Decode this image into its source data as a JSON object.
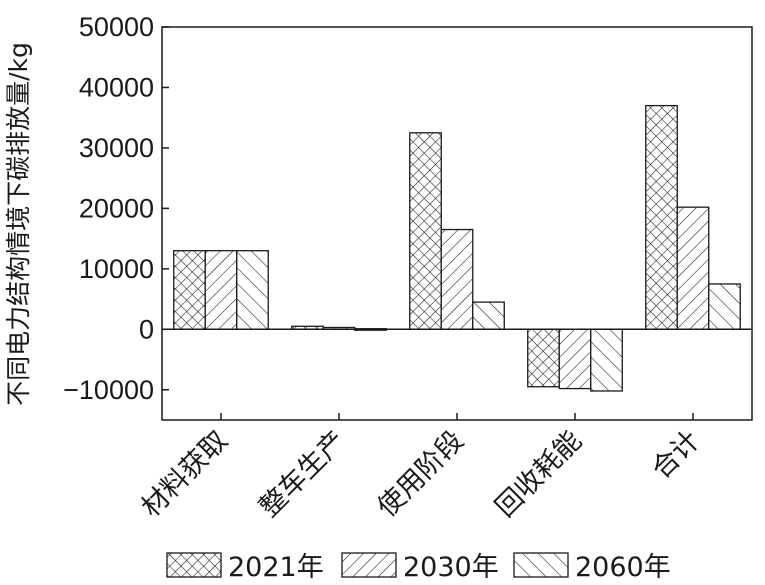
{
  "chart_data": {
    "type": "bar",
    "ylabel": "不同电力结构情境下碳排放量/kg",
    "ylim": [
      -15000,
      50000
    ],
    "yticks": [
      50000,
      40000,
      30000,
      20000,
      10000,
      0,
      -10000
    ],
    "ytick_labels": [
      "50000",
      "40000",
      "30000",
      "20000",
      "10000",
      "0",
      "−10000"
    ],
    "categories": [
      "材料获取",
      "整车生产",
      "使用阶段",
      "回收耗能",
      "合计"
    ],
    "series": [
      {
        "name": "2021年",
        "pattern": "crosshatch",
        "values": [
          13000,
          500,
          32500,
          -9500,
          37000
        ]
      },
      {
        "name": "2030年",
        "pattern": "diagonal-dense",
        "values": [
          13000,
          300,
          16500,
          -9800,
          20200
        ]
      },
      {
        "name": "2060年",
        "pattern": "diagonal-sparse",
        "values": [
          13000,
          100,
          4500,
          -10200,
          7500
        ]
      }
    ],
    "legend_position": "bottom",
    "grid": false,
    "colors": {
      "ink": "#1a1a1a",
      "background": "#ffffff"
    }
  }
}
